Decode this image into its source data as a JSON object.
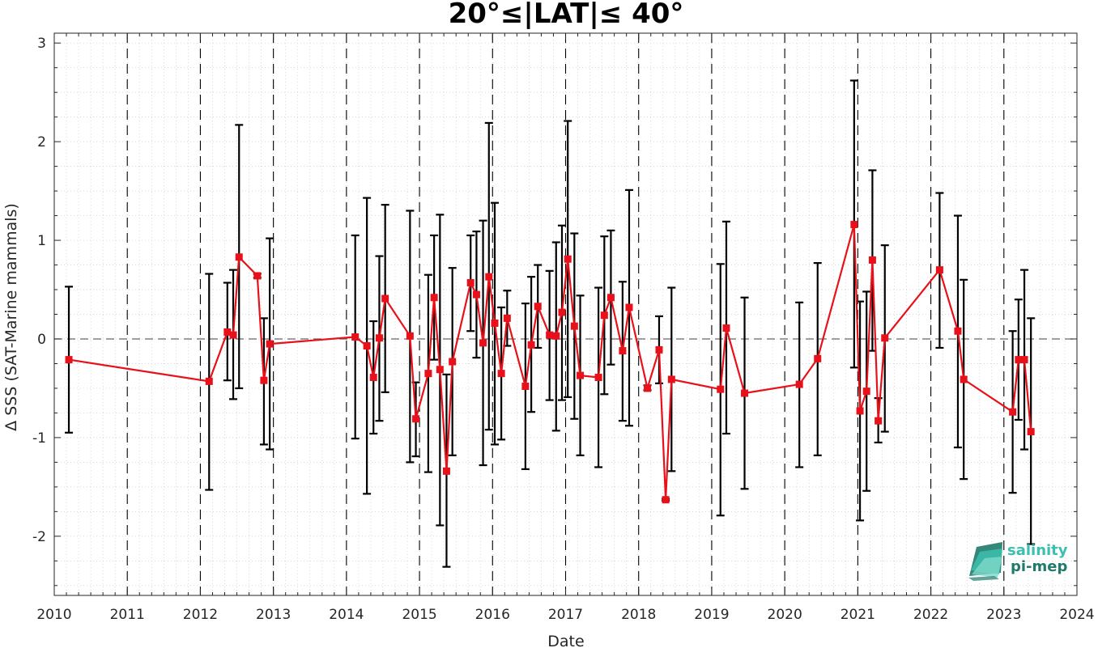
{
  "chart_data": {
    "type": "scatter",
    "title": "20°≤|LAT|≤ 40°",
    "xlabel": "Date",
    "ylabel": "Δ SSS (SAT-Marine mammals)",
    "xlim": [
      2010,
      2024
    ],
    "ylim": [
      -2.6,
      3.1
    ],
    "x_ticks": [
      2010,
      2011,
      2012,
      2013,
      2014,
      2015,
      2016,
      2017,
      2018,
      2019,
      2020,
      2021,
      2022,
      2023,
      2024
    ],
    "x_tick_labels": [
      "2010",
      "2011",
      "2012",
      "2013",
      "2014",
      "2015",
      "2016",
      "2017",
      "2018",
      "2019",
      "2020",
      "2021",
      "2022",
      "2023",
      "2024"
    ],
    "y_ticks": [
      -2,
      -1,
      0,
      1,
      2,
      3
    ],
    "y_tick_labels": [
      "-2",
      "-1",
      "0",
      "1",
      "2",
      "3"
    ],
    "grid": true,
    "zero_line": true,
    "year_boundary_lines": true,
    "colors": {
      "series": "#e8111a",
      "errorbar": "#000000",
      "zero_line": "#666666",
      "grid": "#c8c8c8"
    },
    "series": [
      {
        "marker": "square",
        "points": [
          {
            "x": 2010.2,
            "y": -0.21,
            "lo": -0.95,
            "hi": 0.53
          },
          {
            "x": 2012.12,
            "y": -0.43,
            "lo": -1.53,
            "hi": 0.66
          },
          {
            "x": 2012.37,
            "y": 0.07,
            "lo": -0.42,
            "hi": 0.57
          },
          {
            "x": 2012.45,
            "y": 0.04,
            "lo": -0.61,
            "hi": 0.7
          },
          {
            "x": 2012.53,
            "y": 0.83,
            "lo": -0.5,
            "hi": 2.17
          },
          {
            "x": 2012.78,
            "y": 0.64,
            "lo": 0.62,
            "hi": 0.66
          },
          {
            "x": 2012.87,
            "y": -0.42,
            "lo": -1.07,
            "hi": 0.21
          },
          {
            "x": 2012.95,
            "y": -0.05,
            "lo": -1.12,
            "hi": 1.02
          },
          {
            "x": 2014.12,
            "y": 0.02,
            "lo": -1.01,
            "hi": 1.05
          },
          {
            "x": 2014.28,
            "y": -0.07,
            "lo": -1.57,
            "hi": 1.43
          },
          {
            "x": 2014.37,
            "y": -0.39,
            "lo": -0.96,
            "hi": 0.18
          },
          {
            "x": 2014.45,
            "y": 0.01,
            "lo": -0.83,
            "hi": 0.84
          },
          {
            "x": 2014.53,
            "y": 0.41,
            "lo": -0.54,
            "hi": 1.36
          },
          {
            "x": 2014.87,
            "y": 0.03,
            "lo": -1.25,
            "hi": 1.3
          },
          {
            "x": 2014.95,
            "y": -0.81,
            "lo": -1.19,
            "hi": -0.44
          },
          {
            "x": 2015.12,
            "y": -0.35,
            "lo": -1.35,
            "hi": 0.65
          },
          {
            "x": 2015.2,
            "y": 0.42,
            "lo": -0.21,
            "hi": 1.05
          },
          {
            "x": 2015.28,
            "y": -0.31,
            "lo": -1.89,
            "hi": 1.26
          },
          {
            "x": 2015.37,
            "y": -1.34,
            "lo": -2.31,
            "hi": -0.36
          },
          {
            "x": 2015.45,
            "y": -0.23,
            "lo": -1.18,
            "hi": 0.72
          },
          {
            "x": 2015.7,
            "y": 0.57,
            "lo": 0.08,
            "hi": 1.05
          },
          {
            "x": 2015.78,
            "y": 0.45,
            "lo": -0.19,
            "hi": 1.09
          },
          {
            "x": 2015.87,
            "y": -0.04,
            "lo": -1.28,
            "hi": 1.2
          },
          {
            "x": 2015.95,
            "y": 0.63,
            "lo": -0.92,
            "hi": 2.19
          },
          {
            "x": 2016.03,
            "y": 0.16,
            "lo": -1.07,
            "hi": 1.38
          },
          {
            "x": 2016.12,
            "y": -0.35,
            "lo": -1.02,
            "hi": 0.32
          },
          {
            "x": 2016.2,
            "y": 0.21,
            "lo": -0.07,
            "hi": 0.49
          },
          {
            "x": 2016.45,
            "y": -0.48,
            "lo": -1.32,
            "hi": 0.36
          },
          {
            "x": 2016.53,
            "y": -0.06,
            "lo": -0.74,
            "hi": 0.63
          },
          {
            "x": 2016.62,
            "y": 0.33,
            "lo": -0.09,
            "hi": 0.75
          },
          {
            "x": 2016.78,
            "y": 0.04,
            "lo": -0.62,
            "hi": 0.69
          },
          {
            "x": 2016.87,
            "y": 0.03,
            "lo": -0.93,
            "hi": 0.98
          },
          {
            "x": 2016.95,
            "y": 0.27,
            "lo": -0.62,
            "hi": 1.15
          },
          {
            "x": 2017.03,
            "y": 0.81,
            "lo": -0.59,
            "hi": 2.21
          },
          {
            "x": 2017.12,
            "y": 0.13,
            "lo": -0.81,
            "hi": 1.07
          },
          {
            "x": 2017.2,
            "y": -0.37,
            "lo": -1.18,
            "hi": 0.44
          },
          {
            "x": 2017.45,
            "y": -0.39,
            "lo": -1.3,
            "hi": 0.52
          },
          {
            "x": 2017.53,
            "y": 0.24,
            "lo": -0.56,
            "hi": 1.04
          },
          {
            "x": 2017.62,
            "y": 0.42,
            "lo": -0.26,
            "hi": 1.1
          },
          {
            "x": 2017.78,
            "y": -0.12,
            "lo": -0.83,
            "hi": 0.58
          },
          {
            "x": 2017.87,
            "y": 0.32,
            "lo": -0.88,
            "hi": 1.51
          },
          {
            "x": 2018.12,
            "y": -0.5,
            "lo": -0.52,
            "hi": -0.47
          },
          {
            "x": 2018.28,
            "y": -0.11,
            "lo": -0.45,
            "hi": 0.23
          },
          {
            "x": 2018.37,
            "y": -1.63,
            "lo": -1.64,
            "hi": -1.62
          },
          {
            "x": 2018.45,
            "y": -0.41,
            "lo": -1.34,
            "hi": 0.52
          },
          {
            "x": 2019.12,
            "y": -0.51,
            "lo": -1.79,
            "hi": 0.76
          },
          {
            "x": 2019.2,
            "y": 0.11,
            "lo": -0.96,
            "hi": 1.19
          },
          {
            "x": 2019.45,
            "y": -0.55,
            "lo": -1.52,
            "hi": 0.42
          },
          {
            "x": 2020.2,
            "y": -0.46,
            "lo": -1.3,
            "hi": 0.37
          },
          {
            "x": 2020.45,
            "y": -0.2,
            "lo": -1.18,
            "hi": 0.77
          },
          {
            "x": 2020.95,
            "y": 1.16,
            "lo": -0.29,
            "hi": 2.62
          },
          {
            "x": 2021.03,
            "y": -0.73,
            "lo": -1.84,
            "hi": 0.38
          },
          {
            "x": 2021.12,
            "y": -0.53,
            "lo": -1.54,
            "hi": 0.48
          },
          {
            "x": 2021.2,
            "y": 0.8,
            "lo": -0.12,
            "hi": 1.71
          },
          {
            "x": 2021.28,
            "y": -0.83,
            "lo": -1.05,
            "hi": -0.6
          },
          {
            "x": 2021.37,
            "y": 0.01,
            "lo": -0.94,
            "hi": 0.95
          },
          {
            "x": 2022.12,
            "y": 0.7,
            "lo": -0.09,
            "hi": 1.48
          },
          {
            "x": 2022.37,
            "y": 0.08,
            "lo": -1.1,
            "hi": 1.25
          },
          {
            "x": 2022.45,
            "y": -0.41,
            "lo": -1.42,
            "hi": 0.6
          },
          {
            "x": 2023.12,
            "y": -0.74,
            "lo": -1.56,
            "hi": 0.08
          },
          {
            "x": 2023.2,
            "y": -0.21,
            "lo": -0.82,
            "hi": 0.4
          },
          {
            "x": 2023.28,
            "y": -0.21,
            "lo": -1.12,
            "hi": 0.7
          },
          {
            "x": 2023.37,
            "y": -0.94,
            "lo": -2.08,
            "hi": 0.21
          }
        ]
      }
    ]
  },
  "logo": {
    "line1": "salinity",
    "line2": "pi-mep",
    "color1": "#3cbfae",
    "color2": "#1f7a6b"
  }
}
